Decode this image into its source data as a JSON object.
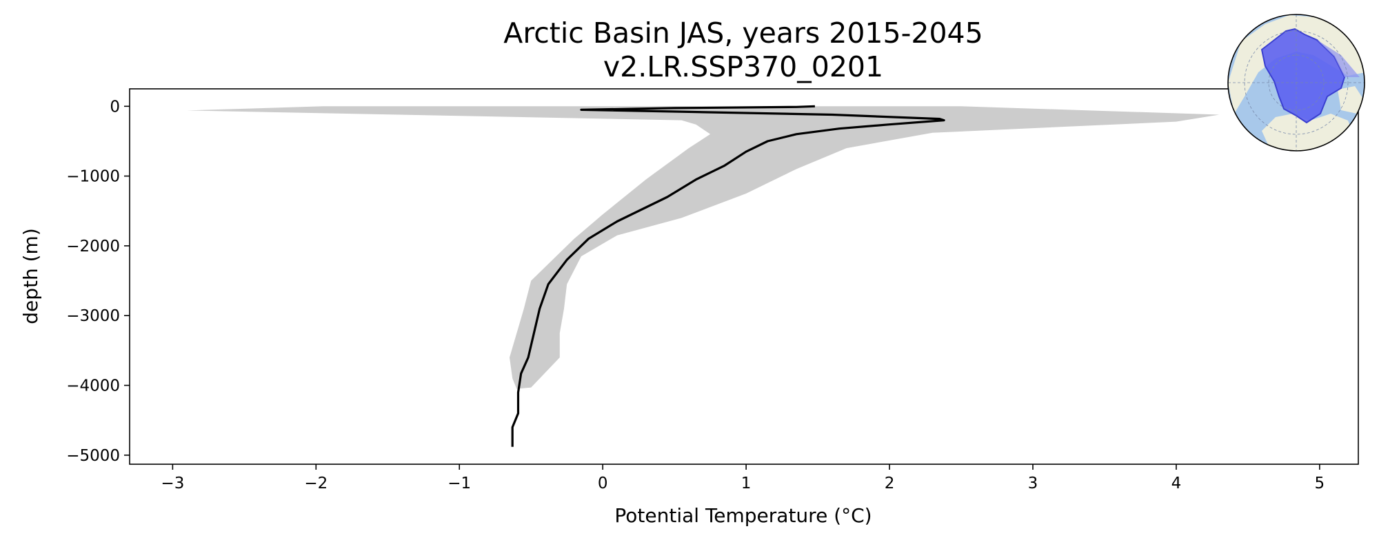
{
  "chart_data": {
    "type": "line",
    "title": "Arctic Basin JAS, years 2015-2045",
    "subtitle": "v2.LR.SSP370_0201",
    "xlabel": "Potential Temperature (°C)",
    "ylabel": "depth (m)",
    "xlim": [
      -3.3,
      5.27
    ],
    "ylim": [
      -5130,
      250
    ],
    "xticks": [
      -3,
      -2,
      -1,
      0,
      1,
      2,
      3,
      4,
      5
    ],
    "yticks": [
      0,
      -1000,
      -2000,
      -3000,
      -4000,
      -5000
    ],
    "xtick_labels": [
      "−3",
      "−2",
      "−1",
      "0",
      "1",
      "2",
      "3",
      "4",
      "5"
    ],
    "ytick_labels": [
      "0",
      "−1000",
      "−2000",
      "−3000",
      "−4000",
      "−5000"
    ],
    "grid": false,
    "line_color": "#000000",
    "band_color": "#cccccc",
    "series": [
      {
        "kind": "mean",
        "points": [
          [
            1.48,
            0
          ],
          [
            1.35,
            -10
          ],
          [
            0.5,
            -25
          ],
          [
            -0.15,
            -50
          ],
          [
            0.6,
            -80
          ],
          [
            1.6,
            -120
          ],
          [
            2.35,
            -180
          ],
          [
            2.38,
            -200
          ],
          [
            2.0,
            -260
          ],
          [
            1.65,
            -320
          ],
          [
            1.35,
            -400
          ],
          [
            1.15,
            -500
          ],
          [
            1.0,
            -650
          ],
          [
            0.85,
            -850
          ],
          [
            0.65,
            -1050
          ],
          [
            0.45,
            -1300
          ],
          [
            0.1,
            -1650
          ],
          [
            -0.1,
            -1900
          ],
          [
            -0.25,
            -2200
          ],
          [
            -0.38,
            -2550
          ],
          [
            -0.44,
            -2900
          ],
          [
            -0.48,
            -3250
          ],
          [
            -0.52,
            -3600
          ],
          [
            -0.57,
            -3830
          ],
          [
            -0.59,
            -4100
          ],
          [
            -0.59,
            -4400
          ],
          [
            -0.63,
            -4600
          ],
          [
            -0.63,
            -4880
          ]
        ]
      },
      {
        "kind": "max",
        "points": [
          [
            2.5,
            0
          ],
          [
            4.3,
            -120
          ],
          [
            4.0,
            -220
          ],
          [
            2.3,
            -380
          ],
          [
            1.7,
            -600
          ],
          [
            1.35,
            -900
          ],
          [
            1.0,
            -1250
          ],
          [
            0.55,
            -1600
          ],
          [
            0.1,
            -1850
          ],
          [
            -0.15,
            -2150
          ],
          [
            -0.25,
            -2550
          ],
          [
            -0.27,
            -2900
          ],
          [
            -0.3,
            -3250
          ],
          [
            -0.3,
            -3600
          ],
          [
            -0.5,
            -4030
          ]
        ]
      },
      {
        "kind": "min",
        "points": [
          [
            -1.95,
            0
          ],
          [
            -2.9,
            -60
          ],
          [
            0.55,
            -200
          ],
          [
            0.65,
            -260
          ],
          [
            0.75,
            -400
          ],
          [
            0.6,
            -600
          ],
          [
            0.3,
            -1050
          ],
          [
            0.0,
            -1550
          ],
          [
            -0.2,
            -1900
          ],
          [
            -0.5,
            -2500
          ],
          [
            -0.55,
            -2900
          ],
          [
            -0.6,
            -3250
          ],
          [
            -0.65,
            -3600
          ],
          [
            -0.63,
            -3900
          ],
          [
            -0.6,
            -4050
          ]
        ]
      }
    ],
    "inset_map": {
      "region": "Arctic Basin",
      "land_color": "#eeeedd",
      "ocean_color": "#a8c8ea",
      "region_color": "#5a5ff0"
    }
  }
}
